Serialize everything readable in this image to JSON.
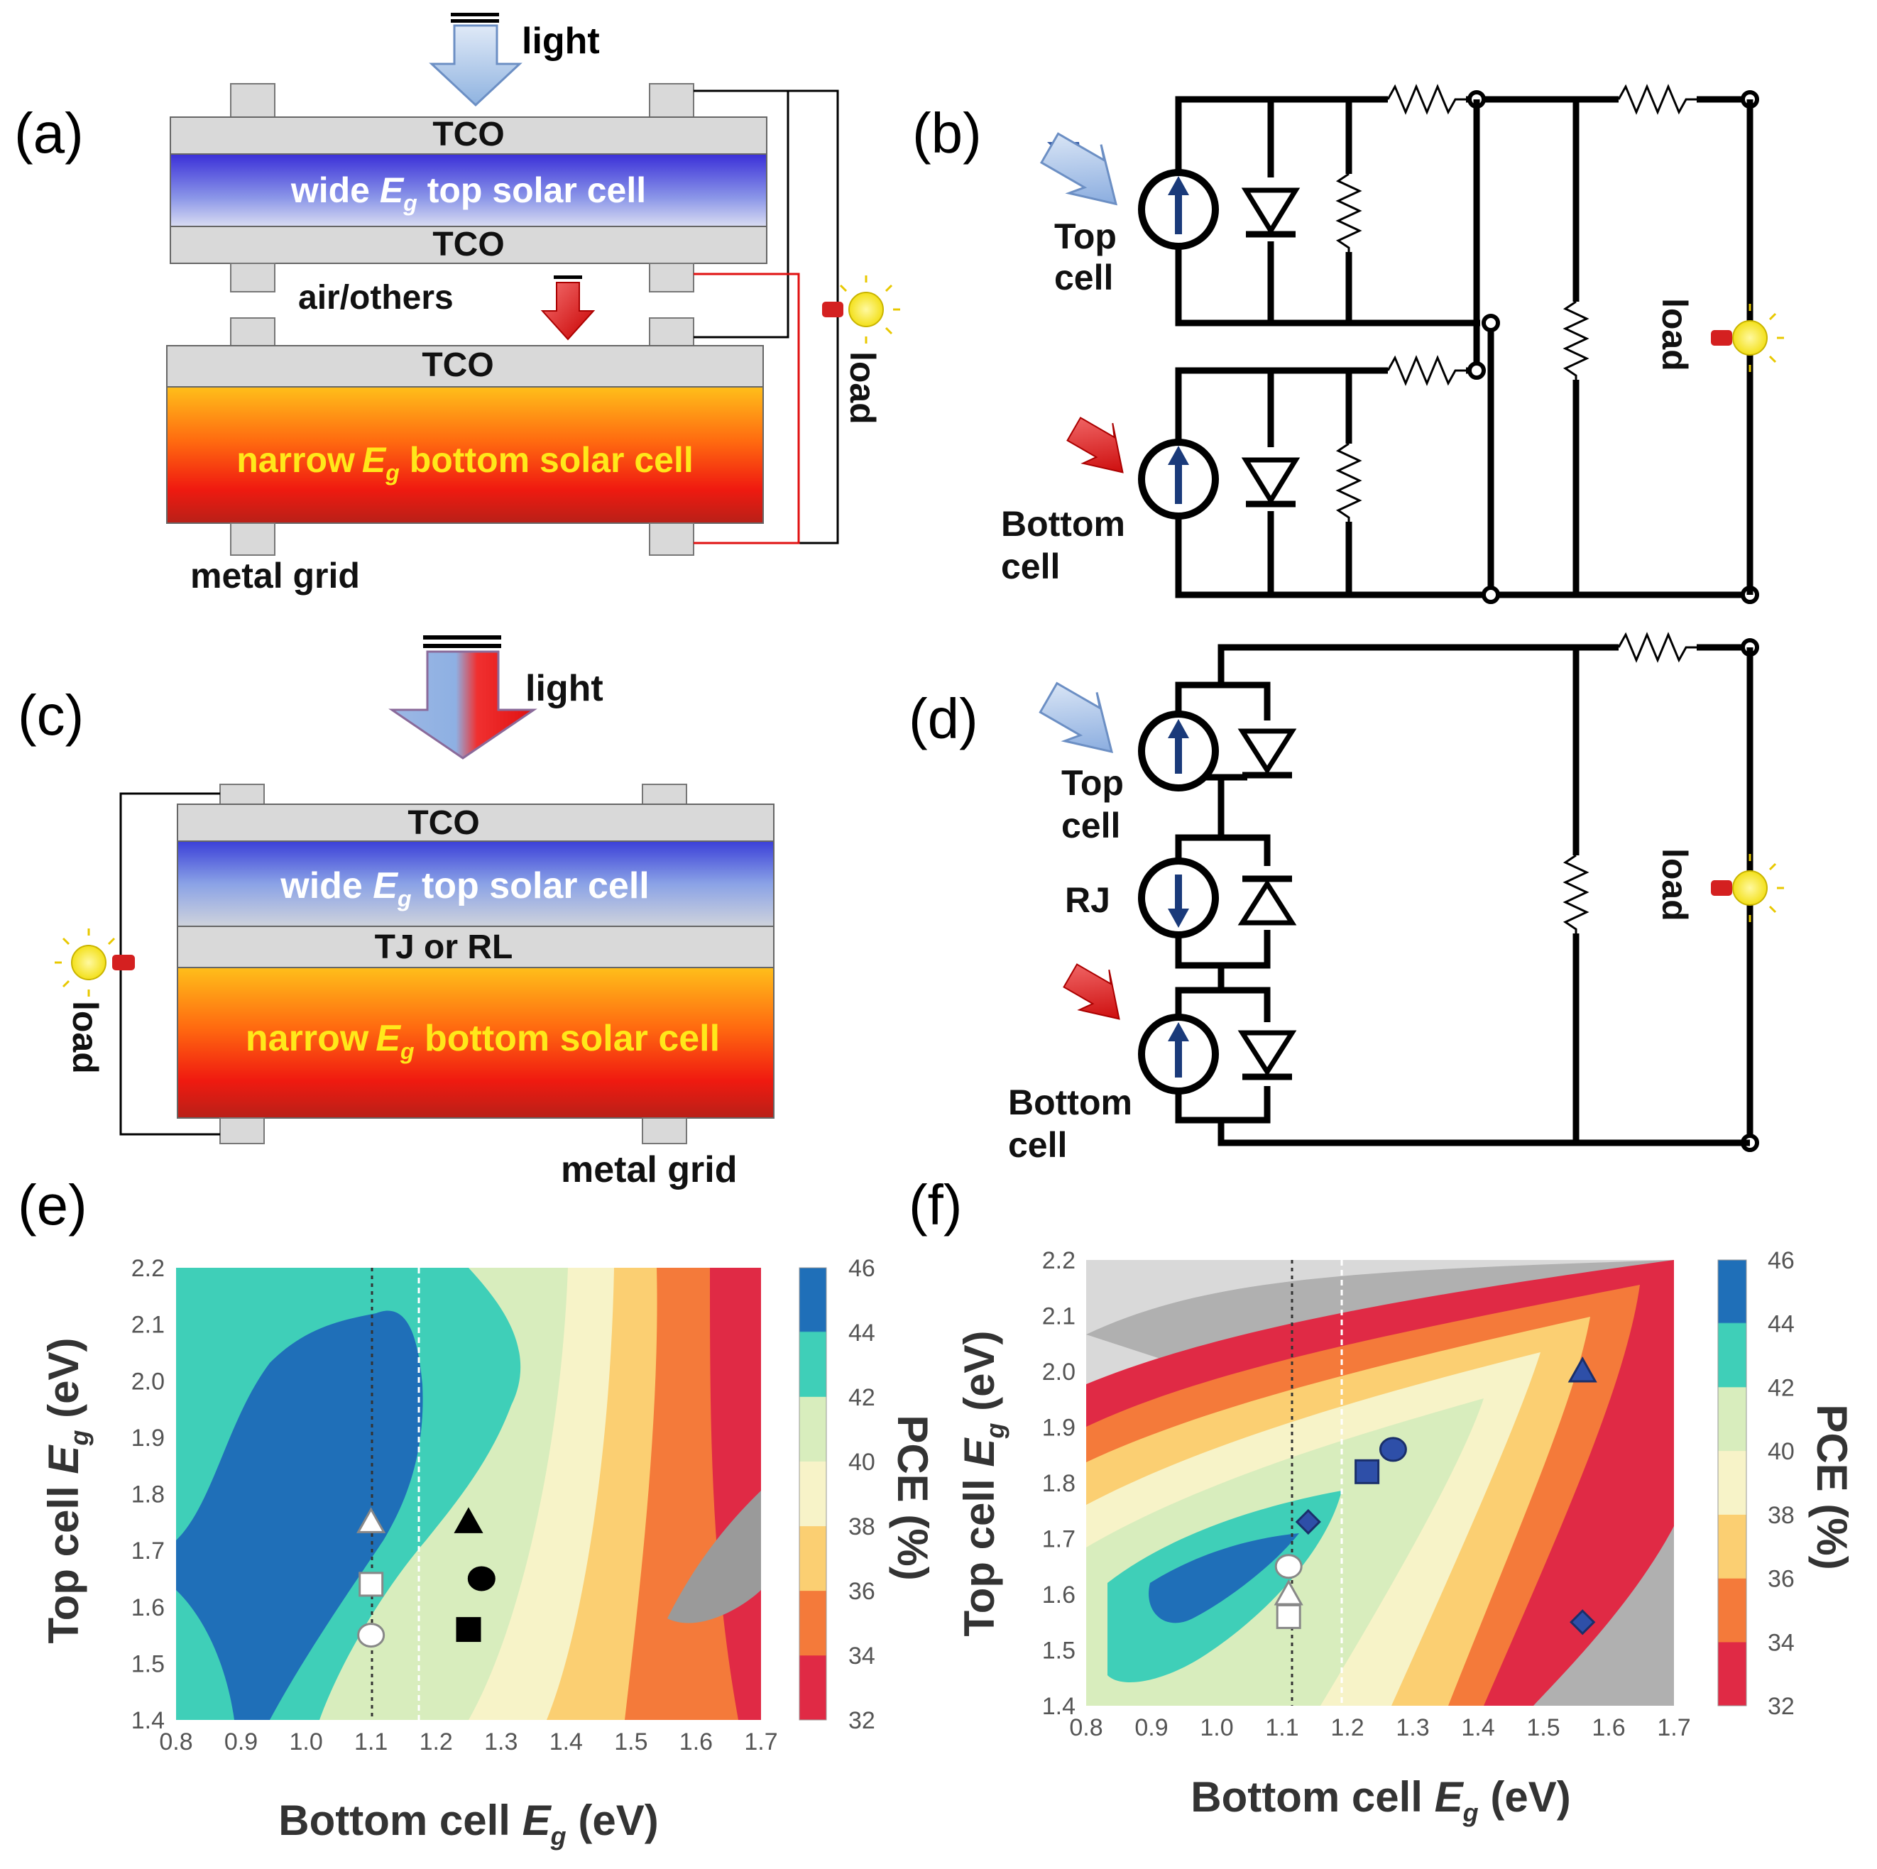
{
  "panels": {
    "a": "(a)",
    "b": "(b)",
    "c": "(c)",
    "d": "(d)",
    "e": "(e)",
    "f": "(f)"
  },
  "a": {
    "light": "light",
    "tco": "TCO",
    "top_pre": "wide ",
    "top_post": " top solar cell",
    "air": "air/others",
    "bottom_pre": "narrow",
    "bottom_post": " bottom solar cell",
    "metal_grid": "metal grid",
    "load": "load",
    "eg": "E",
    "eg_sub": "g"
  },
  "b": {
    "top_cell_1": "Top",
    "top_cell_2": "cell",
    "bottom_cell_1": "Bottom",
    "bottom_cell_2": "cell",
    "load": "load"
  },
  "c": {
    "light": "light",
    "tco": "TCO",
    "top_pre": "wide ",
    "top_post": " top solar cell",
    "tj": "TJ or RL",
    "bottom_pre": "narrow",
    "bottom_post": " bottom solar cell",
    "metal_grid": "metal grid",
    "load": "load",
    "eg": "E",
    "eg_sub": "g"
  },
  "d": {
    "top_cell_1": "Top",
    "top_cell_2": "cell",
    "rj": "RJ",
    "bottom_cell_1": "Bottom",
    "bottom_cell_2": "cell",
    "load": "load"
  },
  "colors": {
    "deep_blue": "#1f6fb8",
    "teal": "#3fcfb8",
    "light_green": "#d8edbd",
    "cream": "#f7f3c8",
    "yellow_orange": "#fbcf72",
    "orange": "#f47a3a",
    "red": "#e02a45",
    "gray": "#8c8c8c"
  },
  "chart_data": [
    {
      "type": "contour",
      "panel": "(e)",
      "xlabel": "Bottom cell E_g (eV)",
      "ylabel": "Top cell E_g (eV)",
      "x_ticks": [
        "0.8",
        "0.9",
        "1.0",
        "1.1",
        "1.2",
        "1.3",
        "1.4",
        "1.5",
        "1.6",
        "1.7"
      ],
      "y_ticks": [
        "1.4",
        "1.5",
        "1.6",
        "1.7",
        "1.8",
        "1.9",
        "2.0",
        "2.1",
        "2.2"
      ],
      "xlim": [
        0.8,
        1.7
      ],
      "ylim": [
        1.4,
        2.2
      ],
      "colorbar_label": "PCE (%)",
      "colorbar_ticks": [
        "46",
        "44",
        "42",
        "40",
        "38",
        "36",
        "34",
        "32"
      ],
      "reference_lines_x": [
        1.1,
        1.17
      ],
      "markers": [
        {
          "shape": "triangle",
          "fill": "white",
          "x": 1.1,
          "y": 1.75
        },
        {
          "shape": "square",
          "fill": "white",
          "x": 1.1,
          "y": 1.64
        },
        {
          "shape": "circle",
          "fill": "white",
          "x": 1.1,
          "y": 1.55
        },
        {
          "shape": "triangle",
          "fill": "black",
          "x": 1.25,
          "y": 1.75
        },
        {
          "shape": "circle",
          "fill": "black",
          "x": 1.27,
          "y": 1.65
        },
        {
          "shape": "square",
          "fill": "black",
          "x": 1.25,
          "y": 1.56
        }
      ]
    },
    {
      "type": "contour",
      "panel": "(f)",
      "xlabel": "Bottom cell E_g (eV)",
      "ylabel": "Top cell E_g (eV)",
      "x_ticks": [
        "0.8",
        "0.9",
        "1.0",
        "1.1",
        "1.2",
        "1.3",
        "1.4",
        "1.5",
        "1.6",
        "1.7"
      ],
      "y_ticks": [
        "1.4",
        "1.5",
        "1.6",
        "1.7",
        "1.8",
        "1.9",
        "2.0",
        "2.1",
        "2.2"
      ],
      "xlim": [
        0.8,
        1.7
      ],
      "ylim": [
        1.4,
        2.2
      ],
      "colorbar_label": "PCE (%)",
      "colorbar_ticks": [
        "46",
        "44",
        "42",
        "40",
        "38",
        "36",
        "34",
        "32"
      ],
      "reference_lines_x": [
        1.1,
        1.18
      ],
      "markers": [
        {
          "shape": "circle",
          "fill": "white",
          "x": 1.11,
          "y": 1.65
        },
        {
          "shape": "triangle",
          "fill": "white",
          "x": 1.11,
          "y": 1.6
        },
        {
          "shape": "square",
          "fill": "white",
          "x": 1.11,
          "y": 1.56
        },
        {
          "shape": "diamond",
          "fill": "#2e4fa8",
          "x": 1.14,
          "y": 1.73
        },
        {
          "shape": "square",
          "fill": "#2e4fa8",
          "x": 1.23,
          "y": 1.82
        },
        {
          "shape": "circle",
          "fill": "#2e4fa8",
          "x": 1.27,
          "y": 1.86
        },
        {
          "shape": "triangle",
          "fill": "#2e4fa8",
          "x": 1.56,
          "y": 2.0
        },
        {
          "shape": "diamond",
          "fill": "#2e4fa8",
          "x": 1.56,
          "y": 1.55
        }
      ]
    }
  ]
}
